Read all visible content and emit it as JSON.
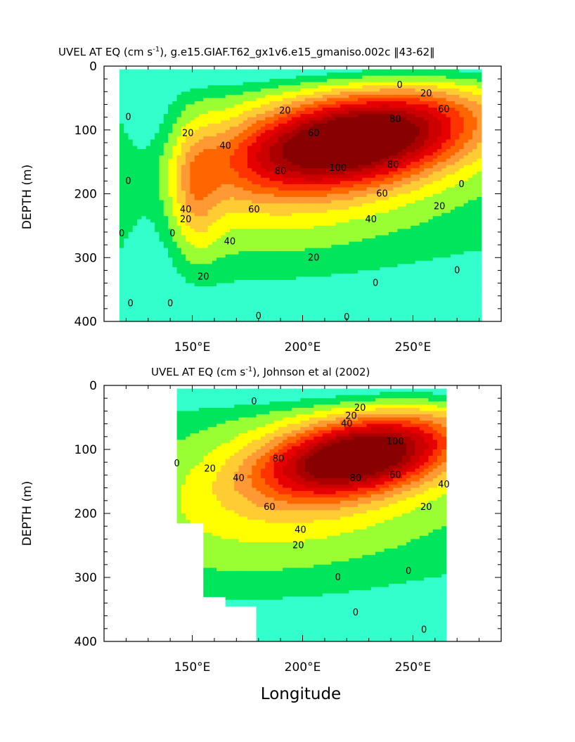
{
  "figure": {
    "xlabel": "Longitude"
  },
  "chart_data": [
    {
      "type": "contour",
      "name": "model",
      "title_pre": "UVEL AT EQ (cm s",
      "title_sup": "-1",
      "title_post": "), g.e15.GIAF.T62_gx1v6.e15_gmaniso.002c ‖43-62‖",
      "ylabel": "DEPTH (m)",
      "xlim": [
        110,
        290
      ],
      "ylim": [
        0,
        400
      ],
      "y_inverted": true,
      "x_ticks": [
        150,
        200,
        250
      ],
      "x_tick_labels": [
        "150°E",
        "200°E",
        "250°E"
      ],
      "y_ticks": [
        0,
        100,
        200,
        300,
        400
      ],
      "y_tick_labels": [
        "0",
        "100",
        "200",
        "300",
        "400"
      ],
      "contour_interval": 10,
      "fill_levels": [
        -10,
        0,
        10,
        20,
        30,
        40,
        50,
        60,
        70,
        80,
        90,
        100
      ],
      "colors": [
        "#33ffcc",
        "#00e65c",
        "#99ff33",
        "#ffff00",
        "#ffcc33",
        "#ff9933",
        "#ff6600",
        "#ff3300",
        "#e60000",
        "#cc0000",
        "#aa0000",
        "#880000"
      ],
      "data_extent": {
        "lon": [
          117,
          280
        ],
        "depth": [
          5,
          400
        ]
      },
      "core": {
        "lon": 224,
        "depth": 115,
        "speed": 110,
        "width_lon": 38,
        "depth_thickness": 48,
        "tilt": -0.5
      },
      "contour_labels": [
        {
          "text": "0",
          "lon": 244,
          "depth": 30
        },
        {
          "text": "20",
          "lon": 256,
          "depth": 43
        },
        {
          "text": "0",
          "lon": 121,
          "depth": 80
        },
        {
          "text": "20",
          "lon": 148,
          "depth": 105
        },
        {
          "text": "60",
          "lon": 264,
          "depth": 68
        },
        {
          "text": "20",
          "lon": 192,
          "depth": 70
        },
        {
          "text": "40",
          "lon": 165,
          "depth": 125
        },
        {
          "text": "80",
          "lon": 242,
          "depth": 83
        },
        {
          "text": "60",
          "lon": 205,
          "depth": 105
        },
        {
          "text": "100",
          "lon": 216,
          "depth": 160
        },
        {
          "text": "80",
          "lon": 190,
          "depth": 165
        },
        {
          "text": "80",
          "lon": 241,
          "depth": 155
        },
        {
          "text": "60",
          "lon": 236,
          "depth": 200
        },
        {
          "text": "40",
          "lon": 231,
          "depth": 240
        },
        {
          "text": "60",
          "lon": 178,
          "depth": 225
        },
        {
          "text": "40",
          "lon": 147,
          "depth": 225
        },
        {
          "text": "20",
          "lon": 147,
          "depth": 240
        },
        {
          "text": "20",
          "lon": 262,
          "depth": 220
        },
        {
          "text": "0",
          "lon": 121,
          "depth": 180
        },
        {
          "text": "40",
          "lon": 167,
          "depth": 275
        },
        {
          "text": "20",
          "lon": 205,
          "depth": 300
        },
        {
          "text": "0",
          "lon": 118,
          "depth": 262
        },
        {
          "text": "0",
          "lon": 141,
          "depth": 262
        },
        {
          "text": "20",
          "lon": 155,
          "depth": 330
        },
        {
          "text": "0",
          "lon": 233,
          "depth": 340
        },
        {
          "text": "0",
          "lon": 122,
          "depth": 372
        },
        {
          "text": "0",
          "lon": 140,
          "depth": 372
        },
        {
          "text": "0",
          "lon": 180,
          "depth": 392
        },
        {
          "text": "0",
          "lon": 220,
          "depth": 410
        },
        {
          "text": "0",
          "lon": 272,
          "depth": 185
        },
        {
          "text": "0",
          "lon": 270,
          "depth": 320
        }
      ]
    },
    {
      "type": "contour",
      "name": "observations",
      "title_pre": "UVEL AT EQ (cm s",
      "title_sup": "-1",
      "title_post": "), Johnson et al (2002)",
      "ylabel": "DEPTH (m)",
      "xlim": [
        110,
        290
      ],
      "ylim": [
        0,
        400
      ],
      "y_inverted": true,
      "x_ticks": [
        150,
        200,
        250
      ],
      "x_tick_labels": [
        "150°E",
        "200°E",
        "250°E"
      ],
      "y_ticks": [
        0,
        100,
        200,
        300,
        400
      ],
      "y_tick_labels": [
        "0",
        "100",
        "200",
        "300",
        "400"
      ],
      "contour_interval": 10,
      "fill_levels": [
        -10,
        0,
        10,
        20,
        30,
        40,
        50,
        60,
        70,
        80,
        90,
        100
      ],
      "colors": [
        "#33ffcc",
        "#00e65c",
        "#99ff33",
        "#ffff00",
        "#ffcc33",
        "#ff9933",
        "#ff6600",
        "#ff3300",
        "#e60000",
        "#cc0000",
        "#aa0000",
        "#880000"
      ],
      "data_extent": {
        "lon": [
          143,
          265
        ],
        "depth": [
          5,
          400
        ]
      },
      "mask_steps": [
        {
          "lon": [
            143,
            155
          ],
          "depth_max": 215
        },
        {
          "lon": [
            155,
            165
          ],
          "depth_max": 330
        },
        {
          "lon": [
            165,
            180
          ],
          "depth_max": 345
        }
      ],
      "core": {
        "lon": 226,
        "depth": 110,
        "speed": 105,
        "width_lon": 30,
        "depth_thickness": 40,
        "tilt": -0.55
      },
      "contour_labels": [
        {
          "text": "0",
          "lon": 178,
          "depth": 25
        },
        {
          "text": "0",
          "lon": 143,
          "depth": 122
        },
        {
          "text": "20",
          "lon": 158,
          "depth": 130
        },
        {
          "text": "20",
          "lon": 226,
          "depth": 35
        },
        {
          "text": "20",
          "lon": 222,
          "depth": 48
        },
        {
          "text": "40",
          "lon": 220,
          "depth": 60
        },
        {
          "text": "40",
          "lon": 171,
          "depth": 145
        },
        {
          "text": "80",
          "lon": 189,
          "depth": 115
        },
        {
          "text": "100",
          "lon": 242,
          "depth": 88
        },
        {
          "text": "80",
          "lon": 224,
          "depth": 145
        },
        {
          "text": "60",
          "lon": 242,
          "depth": 140
        },
        {
          "text": "40",
          "lon": 264,
          "depth": 155
        },
        {
          "text": "60",
          "lon": 185,
          "depth": 190
        },
        {
          "text": "40",
          "lon": 199,
          "depth": 226
        },
        {
          "text": "20",
          "lon": 198,
          "depth": 250
        },
        {
          "text": "20",
          "lon": 256,
          "depth": 190
        },
        {
          "text": "0",
          "lon": 216,
          "depth": 300
        },
        {
          "text": "0",
          "lon": 248,
          "depth": 290
        },
        {
          "text": "0",
          "lon": 224,
          "depth": 355
        },
        {
          "text": "0",
          "lon": 255,
          "depth": 382
        }
      ]
    }
  ]
}
